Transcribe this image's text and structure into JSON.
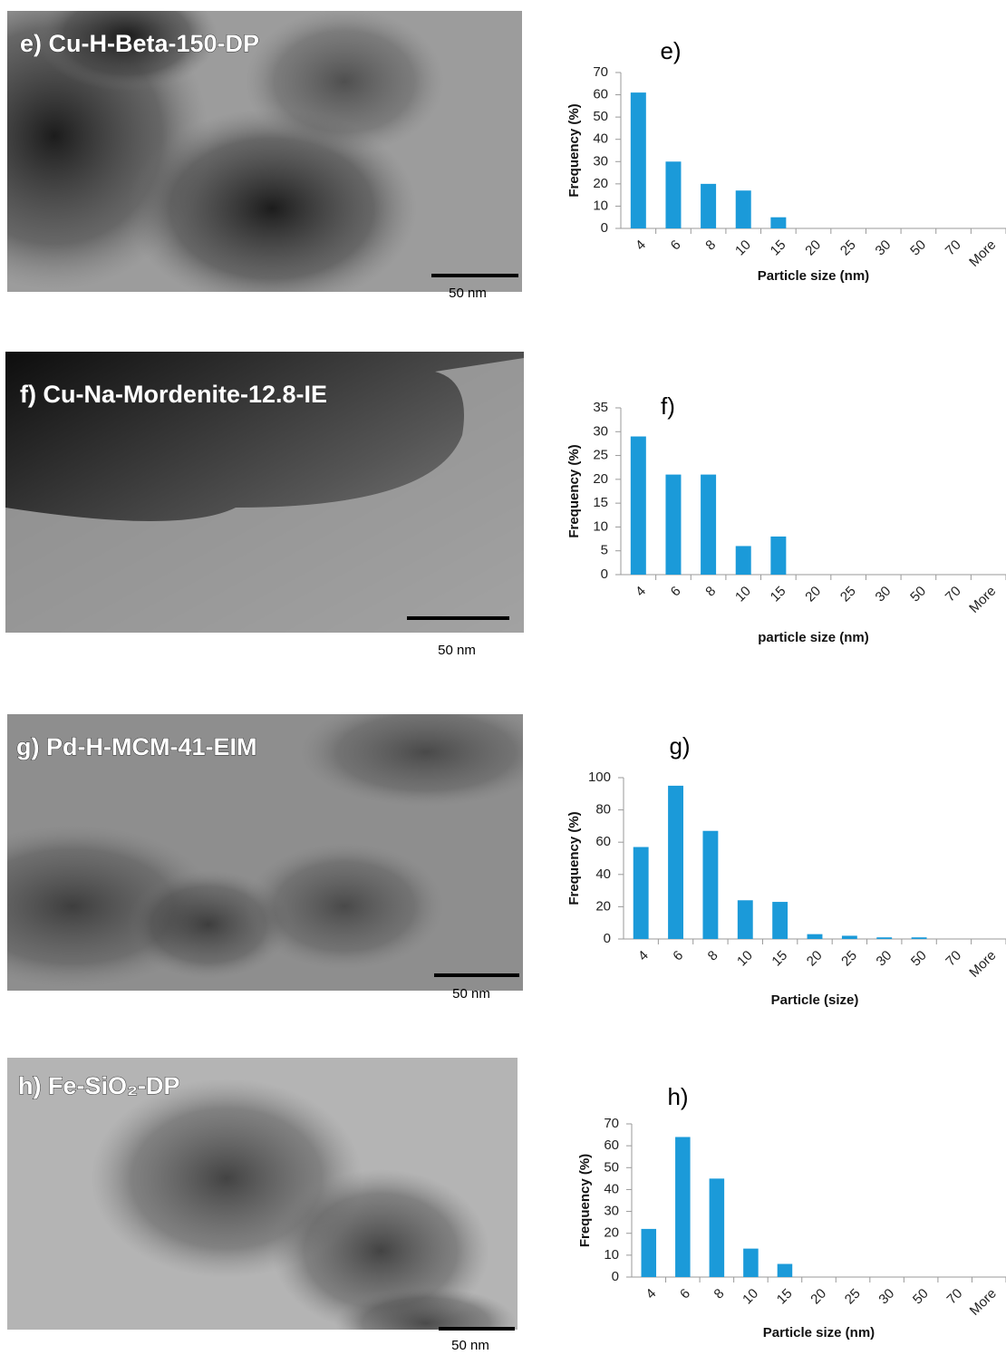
{
  "images": [
    {
      "label": "e) Cu-H-Beta-150-DP",
      "scale_bar": "50 nm"
    },
    {
      "label": "f) Cu-Na-Mordenite-12.8-IE",
      "scale_bar": "50 nm"
    },
    {
      "label": "g) Pd-H-MCM-41-EIM",
      "scale_bar": "50 nm"
    },
    {
      "label": "h) Fe-SiO₂-DP",
      "scale_bar": "50 nm"
    }
  ],
  "chart_data": [
    {
      "type": "bar",
      "title": "e)",
      "x_label": "Particle size (nm)",
      "y_label": "Frequency (%)",
      "categories": [
        "4",
        "6",
        "8",
        "10",
        "15",
        "20",
        "25",
        "30",
        "50",
        "70",
        "More"
      ],
      "values": [
        61,
        30,
        20,
        17,
        5,
        0,
        0,
        0,
        0,
        0,
        0
      ],
      "color": "#1b9ad9",
      "ylim": [
        0,
        70
      ],
      "yticks": [
        0,
        10,
        20,
        30,
        40,
        50,
        60,
        70
      ],
      "grid": false
    },
    {
      "type": "bar",
      "title": "f)",
      "x_label": "particle size (nm)",
      "y_label": "Frequency (%)",
      "categories": [
        "4",
        "6",
        "8",
        "10",
        "15",
        "20",
        "25",
        "30",
        "50",
        "70",
        "More"
      ],
      "values": [
        29,
        21,
        21,
        6,
        8,
        0,
        0,
        0,
        0,
        0,
        0
      ],
      "color": "#1b9ad9",
      "ylim": [
        0,
        35
      ],
      "yticks": [
        0,
        5,
        10,
        15,
        20,
        25,
        30,
        35
      ],
      "grid": false
    },
    {
      "type": "bar",
      "title": "g)",
      "x_label": "Particle (size)",
      "y_label": "Frequency (%)",
      "categories": [
        "4",
        "6",
        "8",
        "10",
        "15",
        "20",
        "25",
        "30",
        "50",
        "70",
        "More"
      ],
      "values": [
        57,
        95,
        67,
        24,
        23,
        3,
        2,
        1,
        1,
        0,
        0
      ],
      "color": "#1b9ad9",
      "ylim": [
        0,
        100
      ],
      "yticks": [
        0,
        20,
        40,
        60,
        80,
        100
      ],
      "grid": false
    },
    {
      "type": "bar",
      "title": "h)",
      "x_label": "Particle size (nm)",
      "y_label": "Frequency (%)",
      "categories": [
        "4",
        "6",
        "8",
        "10",
        "15",
        "20",
        "25",
        "30",
        "50",
        "70",
        "More"
      ],
      "values": [
        22,
        64,
        45,
        13,
        6,
        0,
        0,
        0,
        0,
        0,
        0
      ],
      "color": "#1b9ad9",
      "ylim": [
        0,
        70
      ],
      "yticks": [
        0,
        10,
        20,
        30,
        40,
        50,
        60,
        70
      ],
      "grid": false
    }
  ]
}
